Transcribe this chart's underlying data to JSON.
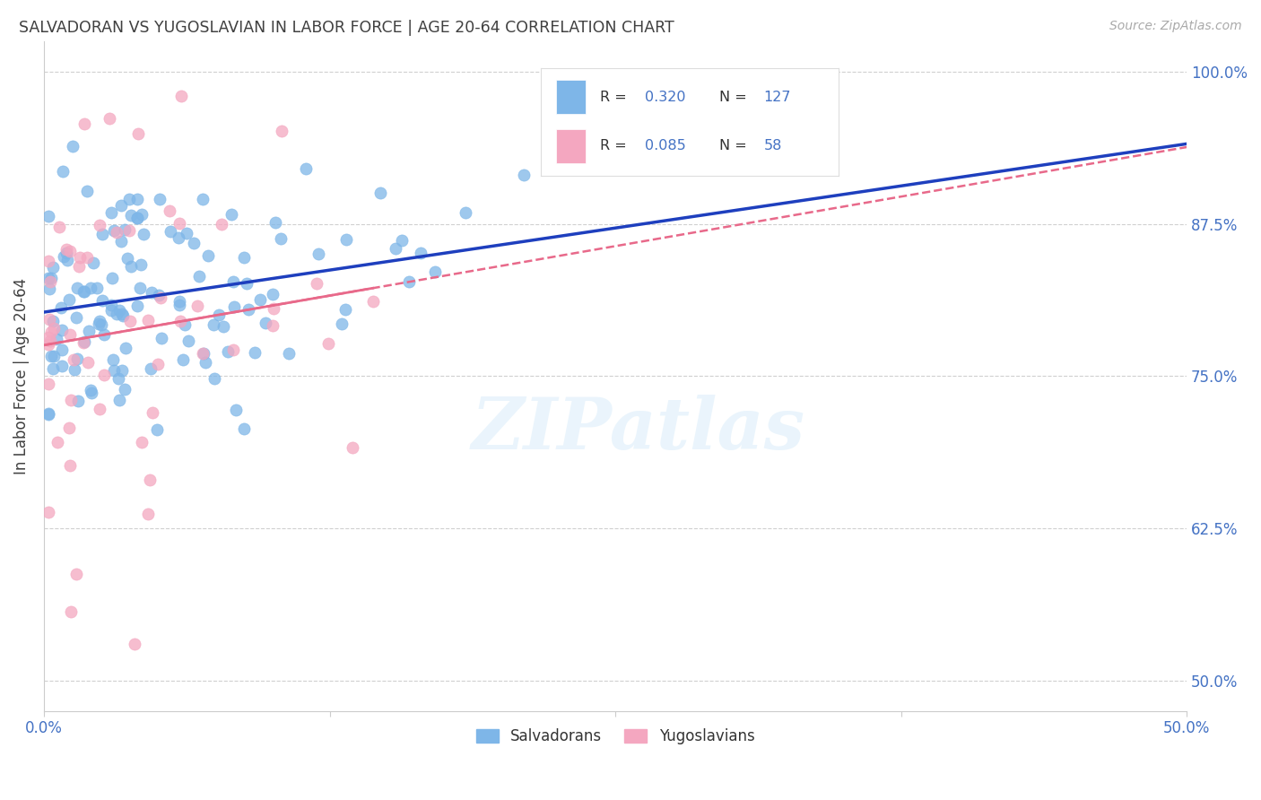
{
  "title": "SALVADORAN VS YUGOSLAVIAN IN LABOR FORCE | AGE 20-64 CORRELATION CHART",
  "source": "Source: ZipAtlas.com",
  "ylabel": "In Labor Force | Age 20-64",
  "ytick_labels": [
    "50.0%",
    "62.5%",
    "75.0%",
    "87.5%",
    "100.0%"
  ],
  "ytick_values": [
    0.5,
    0.625,
    0.75,
    0.875,
    1.0
  ],
  "xlim": [
    0.0,
    0.5
  ],
  "ylim": [
    0.475,
    1.025
  ],
  "blue_color": "#7EB6E8",
  "pink_color": "#F4A7C0",
  "trendline_blue": "#1E3FBE",
  "trendline_pink": "#E8698A",
  "legend_text_color": "#4472C4",
  "title_color": "#404040",
  "axis_color": "#4472C4",
  "R_blue": 0.32,
  "N_blue": 127,
  "R_pink": 0.085,
  "N_pink": 58,
  "watermark": "ZIPatlas",
  "legend_label_blue": "Salvadorans",
  "legend_label_pink": "Yugoslavians"
}
